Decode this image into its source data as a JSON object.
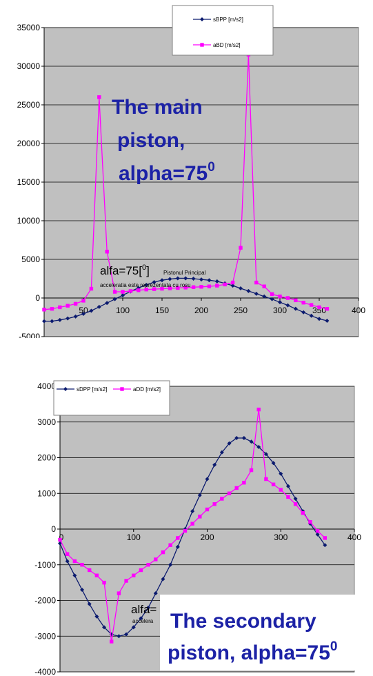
{
  "chart_data": [
    {
      "type": "line",
      "title": "",
      "xlabel": "",
      "ylabel": "",
      "xlim": [
        0,
        400
      ],
      "ylim": [
        -5000,
        35000
      ],
      "x_ticks": [
        "50",
        "100",
        "150",
        "200",
        "250",
        "300",
        "350",
        "400"
      ],
      "y_ticks": [
        "-5000",
        "0",
        "5000",
        "10000",
        "15000",
        "20000",
        "25000",
        "30000",
        "35000"
      ],
      "grid": true,
      "legend": "top-right",
      "series": [
        {
          "name": "sBPP [m/s2]",
          "color": "#0b1a6e",
          "marker": "diamond",
          "points": [
            [
              0,
              -3000
            ],
            [
              10,
              -3000
            ],
            [
              20,
              -2850
            ],
            [
              30,
              -2650
            ],
            [
              40,
              -2400
            ],
            [
              50,
              -2050
            ],
            [
              60,
              -1650
            ],
            [
              70,
              -1150
            ],
            [
              80,
              -650
            ],
            [
              90,
              -150
            ],
            [
              100,
              350
            ],
            [
              110,
              850
            ],
            [
              120,
              1300
            ],
            [
              130,
              1700
            ],
            [
              140,
              2050
            ],
            [
              150,
              2300
            ],
            [
              160,
              2450
            ],
            [
              170,
              2550
            ],
            [
              180,
              2550
            ],
            [
              190,
              2500
            ],
            [
              200,
              2400
            ],
            [
              210,
              2300
            ],
            [
              220,
              2150
            ],
            [
              230,
              1900
            ],
            [
              240,
              1600
            ],
            [
              250,
              1250
            ],
            [
              260,
              900
            ],
            [
              270,
              550
            ],
            [
              280,
              200
            ],
            [
              290,
              -150
            ],
            [
              300,
              -550
            ],
            [
              310,
              -950
            ],
            [
              320,
              -1400
            ],
            [
              330,
              -1850
            ],
            [
              340,
              -2300
            ],
            [
              350,
              -2700
            ],
            [
              360,
              -2950
            ]
          ]
        },
        {
          "name": "aBD [m/s2]",
          "color": "#ff00ff",
          "marker": "square",
          "points": [
            [
              0,
              -1500
            ],
            [
              10,
              -1400
            ],
            [
              20,
              -1200
            ],
            [
              30,
              -1000
            ],
            [
              40,
              -750
            ],
            [
              50,
              -350
            ],
            [
              60,
              1200
            ],
            [
              70,
              26000
            ],
            [
              80,
              6000
            ],
            [
              90,
              800
            ],
            [
              100,
              800
            ],
            [
              110,
              900
            ],
            [
              120,
              1000
            ],
            [
              130,
              1100
            ],
            [
              140,
              1150
            ],
            [
              150,
              1200
            ],
            [
              160,
              1250
            ],
            [
              170,
              1300
            ],
            [
              180,
              1350
            ],
            [
              190,
              1400
            ],
            [
              200,
              1450
            ],
            [
              210,
              1500
            ],
            [
              220,
              1600
            ],
            [
              230,
              1750
            ],
            [
              240,
              2000
            ],
            [
              250,
              6500
            ],
            [
              260,
              31500
            ],
            [
              270,
              2000
            ],
            [
              280,
              1500
            ],
            [
              290,
              500
            ],
            [
              300,
              200
            ],
            [
              310,
              0
            ],
            [
              320,
              -300
            ],
            [
              330,
              -600
            ],
            [
              340,
              -900
            ],
            [
              350,
              -1200
            ],
            [
              360,
              -1400
            ]
          ]
        }
      ],
      "annotations": {
        "overlay_lines": [
          "The main",
          "piston,",
          "alpha=75"
        ],
        "overlay_superscript": "0",
        "inner_label_main": "alfa=75[",
        "inner_label_sup": "0",
        "inner_label_close": "]",
        "inner_small_label": "Pistonul Principal",
        "inner_caption": "acceleratia este reprezentata cu rosu"
      }
    },
    {
      "type": "line",
      "title": "",
      "xlabel": "",
      "ylabel": "",
      "xlim": [
        0,
        400
      ],
      "ylim": [
        -4000,
        4000
      ],
      "x_ticks": [
        "100",
        "200",
        "300",
        "400"
      ],
      "y_ticks": [
        "-4000",
        "-3000",
        "-2000",
        "-1000",
        "0",
        "1000",
        "2000",
        "3000",
        "4000"
      ],
      "grid": true,
      "legend": "top-left",
      "series": [
        {
          "name": "sDPP [m/s2]",
          "color": "#0b1a6e",
          "marker": "diamond",
          "points": [
            [
              0,
              -400
            ],
            [
              10,
              -900
            ],
            [
              20,
              -1300
            ],
            [
              30,
              -1700
            ],
            [
              40,
              -2100
            ],
            [
              50,
              -2450
            ],
            [
              60,
              -2750
            ],
            [
              70,
              -2950
            ],
            [
              80,
              -3000
            ],
            [
              90,
              -2950
            ],
            [
              100,
              -2750
            ],
            [
              110,
              -2500
            ],
            [
              120,
              -2200
            ],
            [
              130,
              -1800
            ],
            [
              140,
              -1400
            ],
            [
              150,
              -1000
            ],
            [
              160,
              -500
            ],
            [
              170,
              0
            ],
            [
              180,
              500
            ],
            [
              190,
              950
            ],
            [
              200,
              1400
            ],
            [
              210,
              1800
            ],
            [
              220,
              2150
            ],
            [
              230,
              2400
            ],
            [
              240,
              2550
            ],
            [
              250,
              2550
            ],
            [
              260,
              2450
            ],
            [
              270,
              2300
            ],
            [
              280,
              2100
            ],
            [
              290,
              1850
            ],
            [
              300,
              1550
            ],
            [
              310,
              1200
            ],
            [
              320,
              850
            ],
            [
              330,
              500
            ],
            [
              340,
              150
            ],
            [
              350,
              -150
            ],
            [
              360,
              -450
            ]
          ]
        },
        {
          "name": "aDD [m/s2]",
          "color": "#ff00ff",
          "marker": "square",
          "points": [
            [
              0,
              -300
            ],
            [
              10,
              -700
            ],
            [
              20,
              -900
            ],
            [
              30,
              -1000
            ],
            [
              40,
              -1150
            ],
            [
              50,
              -1300
            ],
            [
              60,
              -1500
            ],
            [
              70,
              -3150
            ],
            [
              80,
              -1800
            ],
            [
              90,
              -1450
            ],
            [
              100,
              -1300
            ],
            [
              110,
              -1150
            ],
            [
              120,
              -1000
            ],
            [
              130,
              -850
            ],
            [
              140,
              -650
            ],
            [
              150,
              -450
            ],
            [
              160,
              -250
            ],
            [
              170,
              -50
            ],
            [
              180,
              150
            ],
            [
              190,
              350
            ],
            [
              200,
              550
            ],
            [
              210,
              700
            ],
            [
              220,
              850
            ],
            [
              230,
              1000
            ],
            [
              240,
              1150
            ],
            [
              250,
              1300
            ],
            [
              260,
              1650
            ],
            [
              270,
              3350
            ],
            [
              280,
              1400
            ],
            [
              290,
              1250
            ],
            [
              300,
              1100
            ],
            [
              310,
              900
            ],
            [
              320,
              700
            ],
            [
              330,
              450
            ],
            [
              340,
              200
            ],
            [
              350,
              -50
            ],
            [
              360,
              -250
            ]
          ]
        }
      ],
      "annotations": {
        "overlay_lines": [
          "The secondary",
          "piston, alpha=75"
        ],
        "overlay_superscript": "0",
        "inner_label_main": "alfa=",
        "inner_caption": "accelera"
      }
    }
  ]
}
